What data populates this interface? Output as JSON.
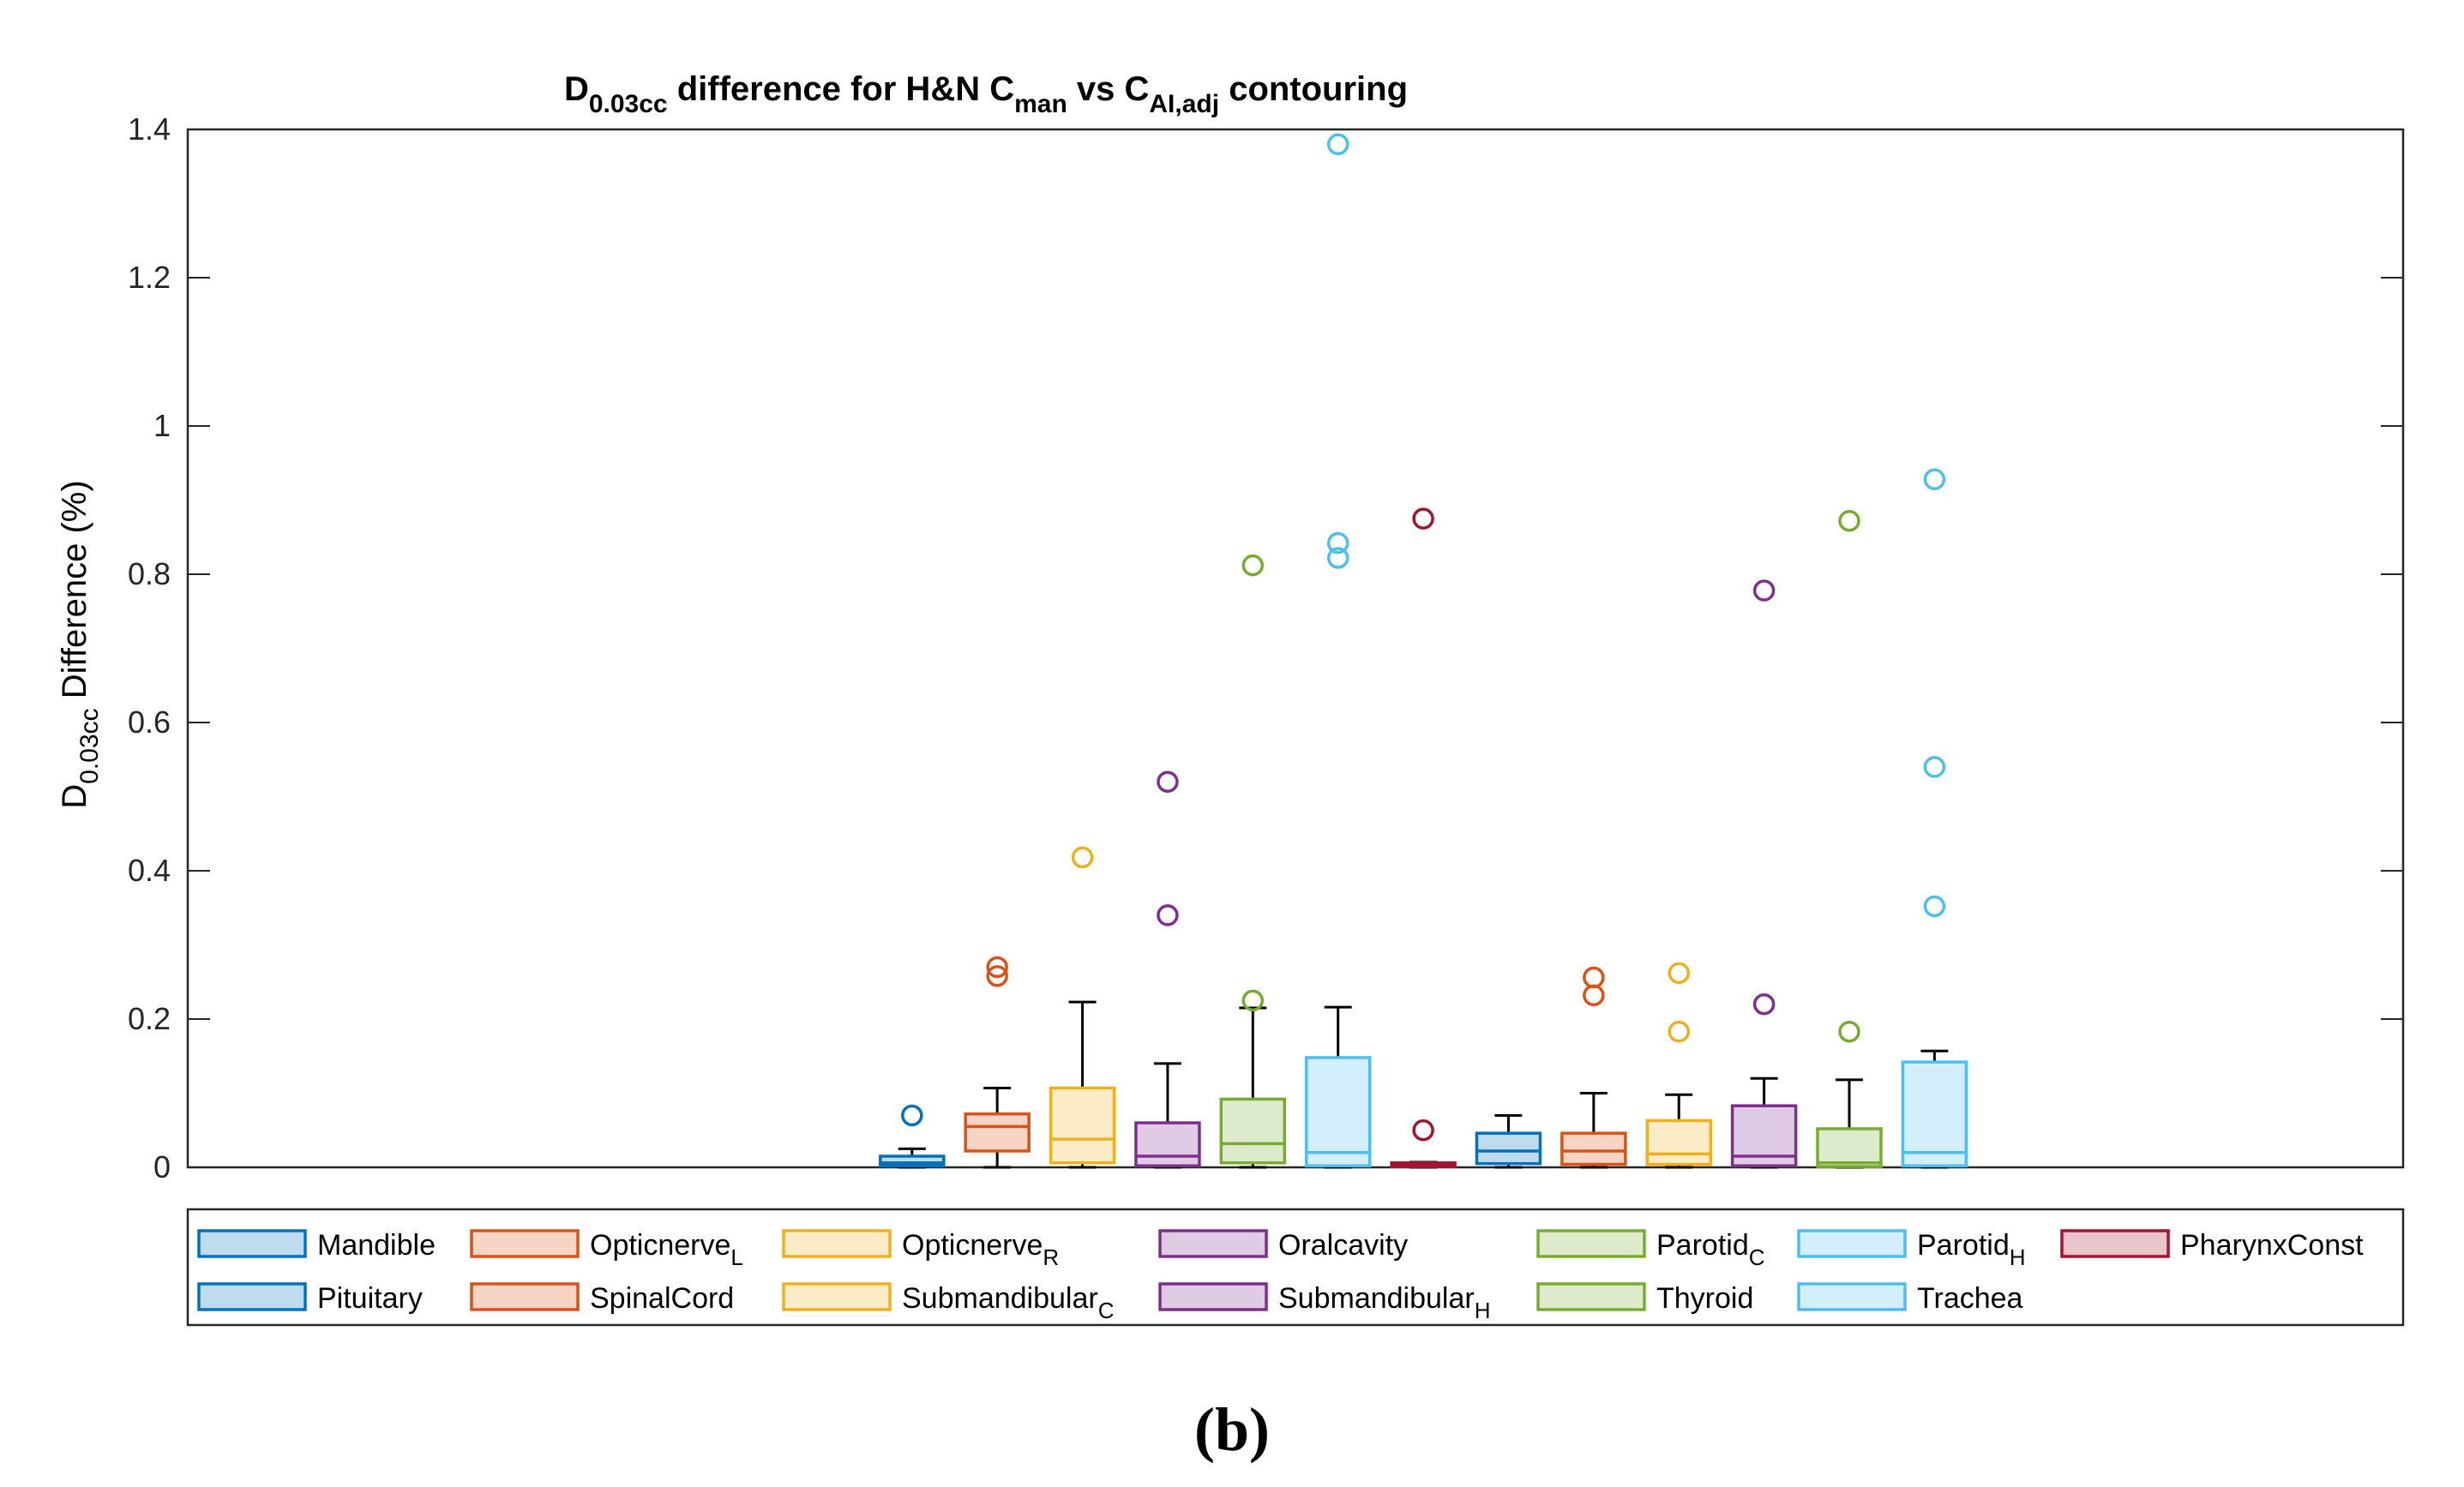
{
  "chart_data": {
    "type": "boxplot",
    "title": {
      "prefix": "D",
      "prefix_sub": "0.03cc",
      "mid1": " difference for H&N C",
      "mid1_sub": "man",
      "mid2": " vs C",
      "mid2_sub": "AI,adj",
      "suffix": " contouring"
    },
    "ylabel": {
      "main": "D",
      "sub": "0.03cc",
      "rest": " Difference (%)"
    },
    "ylim": [
      0,
      1.4
    ],
    "yticks": [
      0,
      0.2,
      0.4,
      0.6,
      0.8,
      1,
      1.2,
      1.4
    ],
    "ytick_labels": [
      "0",
      "0.2",
      "0.4",
      "0.6",
      "0.8",
      "1",
      "1.2",
      "1.4"
    ],
    "slots": 26,
    "caption": "(b)",
    "boxes": [
      {
        "label": "Mandible",
        "slot": 8,
        "color": "#0072BD",
        "q1": 0.002,
        "median": 0.006,
        "q3": 0.015,
        "wlo": 0,
        "whi": 0.025,
        "outliers": [
          0.07
        ]
      },
      {
        "label": "Opticnerve",
        "sub": "L",
        "slot": 9,
        "color": "#D95319",
        "q1": 0.022,
        "median": 0.055,
        "q3": 0.072,
        "wlo": 0,
        "whi": 0.107,
        "outliers": [
          0.27,
          0.258
        ]
      },
      {
        "label": "Opticnerve",
        "sub": "R",
        "slot": 10,
        "color": "#EDB120",
        "q1": 0.006,
        "median": 0.038,
        "q3": 0.107,
        "wlo": 0,
        "whi": 0.223,
        "outliers": [
          0.418
        ]
      },
      {
        "label": "Oralcavity",
        "slot": 11,
        "color": "#7E2F8E",
        "q1": 0.002,
        "median": 0.015,
        "q3": 0.06,
        "wlo": 0,
        "whi": 0.14,
        "outliers": [
          0.52,
          0.34
        ]
      },
      {
        "label": "Parotid",
        "sub": "C",
        "slot": 12,
        "color": "#77AC30",
        "q1": 0.006,
        "median": 0.032,
        "q3": 0.092,
        "wlo": 0,
        "whi": 0.215,
        "outliers": [
          0.812,
          0.225
        ]
      },
      {
        "label": "Parotid",
        "sub": "H",
        "slot": 13,
        "color": "#4DBEEE",
        "q1": 0.002,
        "median": 0.02,
        "q3": 0.148,
        "wlo": 0,
        "whi": 0.216,
        "outliers": [
          1.38,
          0.842,
          0.822
        ]
      },
      {
        "label": "PharynxConst",
        "slot": 14,
        "color": "#A2142F",
        "q1": 0.001,
        "median": 0.004,
        "q3": 0.006,
        "wlo": 0,
        "whi": 0.007,
        "outliers": [
          0.875,
          0.05
        ]
      },
      {
        "label": "Pituitary",
        "slot": 15,
        "color": "#0072BD",
        "q1": 0.005,
        "median": 0.022,
        "q3": 0.046,
        "wlo": 0,
        "whi": 0.07,
        "outliers": []
      },
      {
        "label": "SpinalCord",
        "slot": 16,
        "color": "#D95319",
        "q1": 0.004,
        "median": 0.022,
        "q3": 0.046,
        "wlo": 0,
        "whi": 0.1,
        "outliers": [
          0.256,
          0.232
        ]
      },
      {
        "label": "Submandibular",
        "sub": "C",
        "slot": 17,
        "color": "#EDB120",
        "q1": 0.004,
        "median": 0.018,
        "q3": 0.063,
        "wlo": 0,
        "whi": 0.098,
        "outliers": [
          0.262,
          0.183
        ]
      },
      {
        "label": "Submandibular",
        "sub": "H",
        "slot": 18,
        "color": "#7E2F8E",
        "q1": 0.002,
        "median": 0.015,
        "q3": 0.083,
        "wlo": 0,
        "whi": 0.12,
        "outliers": [
          0.778,
          0.22
        ]
      },
      {
        "label": "Thyroid",
        "slot": 19,
        "color": "#77AC30",
        "q1": 0.001,
        "median": 0.006,
        "q3": 0.052,
        "wlo": 0,
        "whi": 0.118,
        "outliers": [
          0.872,
          0.183
        ]
      },
      {
        "label": "Trachea",
        "slot": 20,
        "color": "#4DBEEE",
        "q1": 0.002,
        "median": 0.02,
        "q3": 0.142,
        "wlo": 0,
        "whi": 0.157,
        "outliers": [
          0.928,
          0.54,
          0.352
        ]
      }
    ]
  }
}
